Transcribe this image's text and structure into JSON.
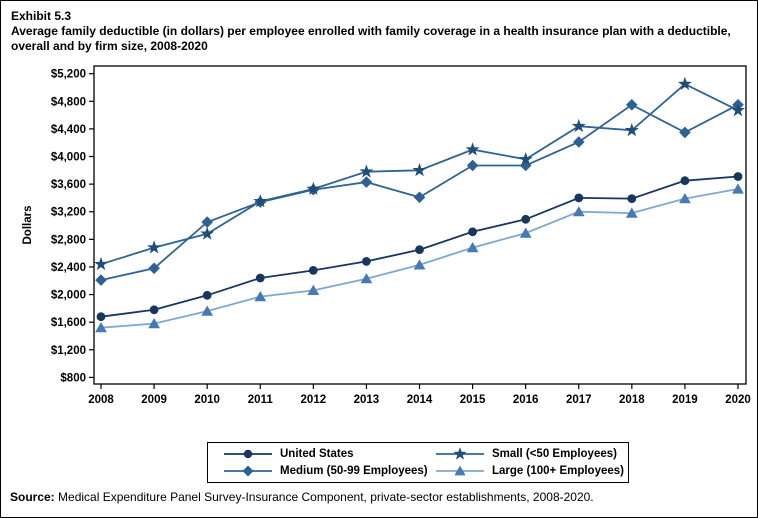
{
  "page": {
    "exhibit_label": "Exhibit 5.3",
    "title": "Average family deductible (in dollars) per employee enrolled with family coverage in a health insurance plan with a deductible, overall and by firm size, 2008-2020",
    "source_label": "Source:",
    "source_text": " Medical Expenditure Panel Survey-Insurance Component, private-sector establishments, 2008-2020."
  },
  "chart_data": {
    "type": "line",
    "title": "Average family deductible (in dollars) per employee enrolled with family coverage in a health insurance plan with a deductible, overall and by firm size, 2008-2020",
    "xlabel": "",
    "ylabel": "Dollars",
    "ylim": [
      800,
      5200
    ],
    "ytick_step": 400,
    "ytick_format": "$#,###",
    "grid": false,
    "legend_position": "bottom",
    "categories": [
      "2008",
      "2009",
      "2010",
      "2011",
      "2012",
      "2013",
      "2014",
      "2015",
      "2016",
      "2017",
      "2018",
      "2019",
      "2020"
    ],
    "series": [
      {
        "name": "United States",
        "marker": "circle",
        "marker_color": "#17375E",
        "line_color": "#17375E",
        "values": [
          1680,
          1780,
          1990,
          2240,
          2350,
          2480,
          2650,
          2910,
          3090,
          3400,
          3390,
          3650,
          3710
        ]
      },
      {
        "name": "Medium (50-99 Employees)",
        "marker": "diamond",
        "marker_color": "#2E6193",
        "line_color": "#2E6496",
        "values": [
          2210,
          2380,
          3050,
          3340,
          3520,
          3630,
          3410,
          3870,
          3870,
          4210,
          4750,
          4350,
          4750
        ]
      },
      {
        "name": "Small (<50 Employees)",
        "marker": "star",
        "marker_color": "#1F4E79",
        "line_color": "#2E6496",
        "values": [
          2440,
          2680,
          2880,
          3350,
          3530,
          3780,
          3800,
          4100,
          3960,
          4440,
          4380,
          5050,
          4670
        ]
      },
      {
        "name": "Large (100+ Employees)",
        "marker": "triangle",
        "marker_color": "#4779B3",
        "line_color": "#7FA8D0",
        "values": [
          1520,
          1580,
          1760,
          1970,
          2060,
          2230,
          2430,
          2680,
          2890,
          3200,
          3180,
          3390,
          3530
        ]
      }
    ]
  },
  "legend_order": [
    0,
    2,
    1,
    3
  ]
}
